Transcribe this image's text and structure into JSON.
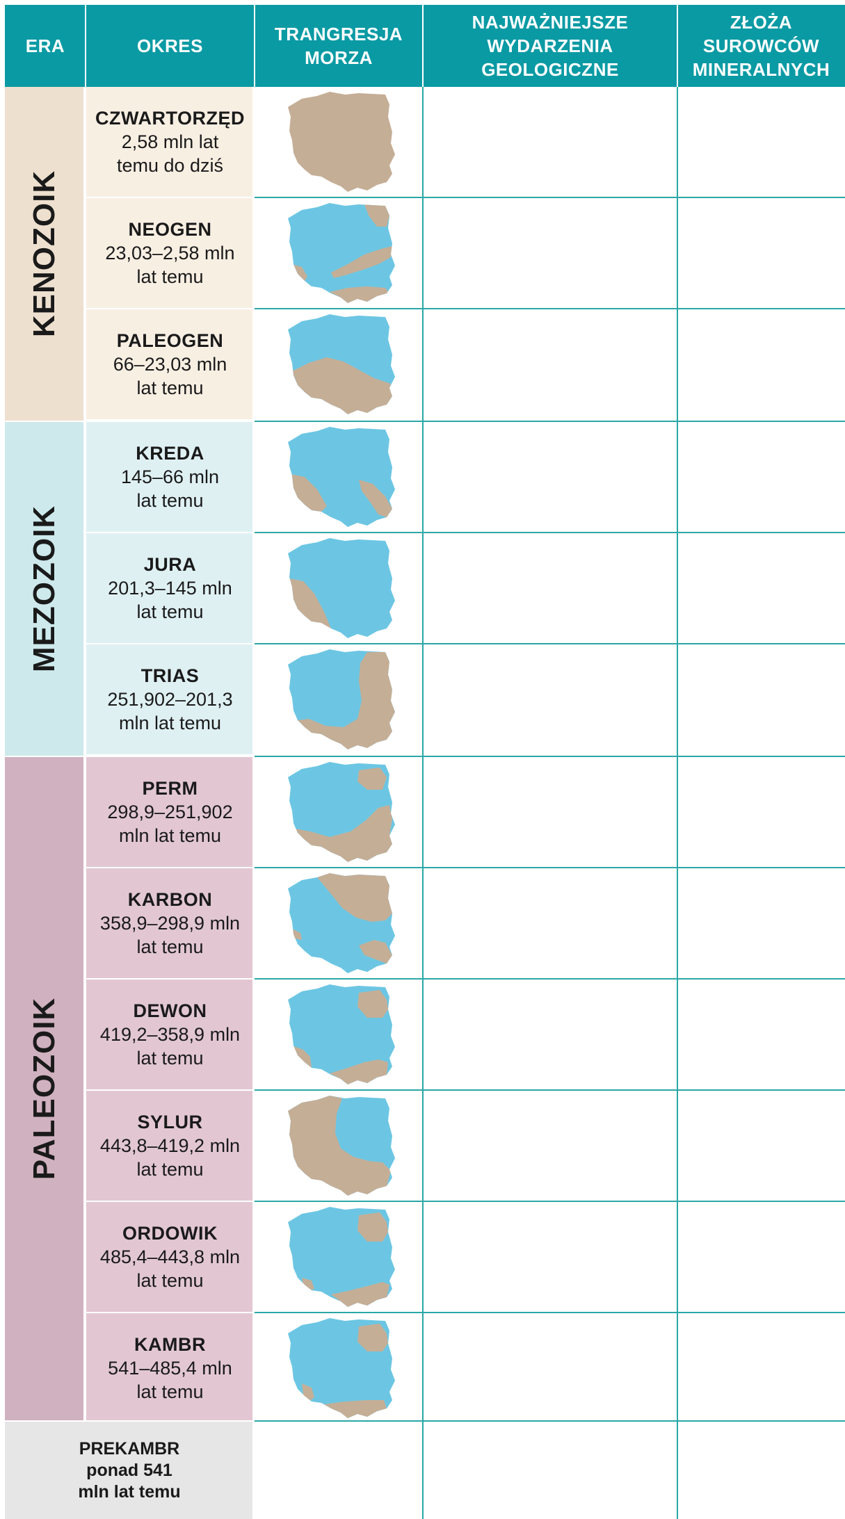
{
  "header": {
    "era": "ERA",
    "okres": "OKRES",
    "trangresja": [
      "TRANGRESJA",
      "MORZA"
    ],
    "wydarzenia": [
      "NAJWAŻNIEJSZE",
      "WYDARZENIA",
      "GEOLOGICZNE"
    ],
    "zloza": [
      "ZŁOŻA",
      "SUROWCÓW",
      "MINERALNYCH"
    ]
  },
  "colors": {
    "header": "#0a9aa4",
    "kenozoik": "#ede0cf",
    "kenozoik_period": "#f8efe3",
    "mezozoik": "#cde9ec",
    "mezozoik_period": "#dff0f3",
    "paleozoik": "#d0b1bf",
    "paleozoik_period": "#e2c7d2",
    "land": "#c5ae96",
    "sea": "#6cc6e3",
    "grid": "#2aa7a6"
  },
  "eras": [
    {
      "name": "KENOZOIK"
    },
    {
      "name": "MEZOZOIK"
    },
    {
      "name": "PALEOZOIK"
    }
  ],
  "periods": [
    {
      "name": "CZWARTORZĘD",
      "date_line1": "2,58 mln lat",
      "date_line2": "temu do dziś",
      "era": "kenozoik",
      "map": "full-land"
    },
    {
      "name": "NEOGEN",
      "date_line1": "23,03–2,58 mln",
      "date_line2": "lat temu",
      "era": "kenozoik",
      "map": "neogen"
    },
    {
      "name": "PALEOGEN",
      "date_line1": "66–23,03 mln",
      "date_line2": "lat temu",
      "era": "kenozoik",
      "map": "paleogen"
    },
    {
      "name": "KREDA",
      "date_line1": "145–66 mln",
      "date_line2": "lat temu",
      "era": "mezozoik",
      "map": "kreda"
    },
    {
      "name": "JURA",
      "date_line1": "201,3–145 mln",
      "date_line2": "lat temu",
      "era": "mezozoik",
      "map": "jura"
    },
    {
      "name": "TRIAS",
      "date_line1": "251,902–201,3",
      "date_line2": "mln lat temu",
      "era": "mezozoik",
      "map": "trias"
    },
    {
      "name": "PERM",
      "date_line1": "298,9–251,902",
      "date_line2": "mln lat temu",
      "era": "paleozoik",
      "map": "perm"
    },
    {
      "name": "KARBON",
      "date_line1": "358,9–298,9 mln",
      "date_line2": "lat temu",
      "era": "paleozoik",
      "map": "karbon"
    },
    {
      "name": "DEWON",
      "date_line1": "419,2–358,9 mln",
      "date_line2": "lat temu",
      "era": "paleozoik",
      "map": "dewon"
    },
    {
      "name": "SYLUR",
      "date_line1": "443,8–419,2 mln",
      "date_line2": "lat temu",
      "era": "paleozoik",
      "map": "sylur"
    },
    {
      "name": "ORDOWIK",
      "date_line1": "485,4–443,8 mln",
      "date_line2": "lat temu",
      "era": "paleozoik",
      "map": "ordowik"
    },
    {
      "name": "KAMBR",
      "date_line1": "541–485,4 mln",
      "date_line2": "lat temu",
      "era": "paleozoik",
      "map": "kambr"
    }
  ],
  "prekambr": {
    "line1": "PREKAMBR",
    "line2": "ponad 541",
    "line3": "mln lat temu"
  }
}
